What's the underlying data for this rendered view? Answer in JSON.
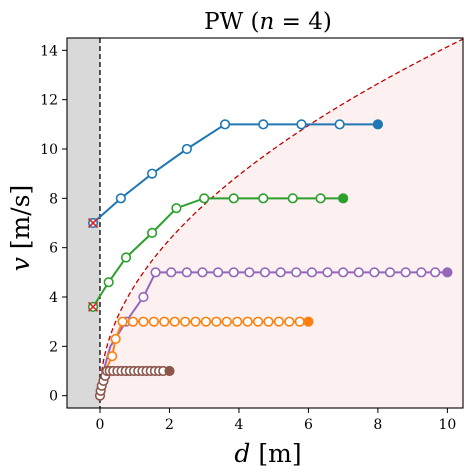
{
  "chart_data": {
    "type": "line",
    "title": "PW (n = 4)",
    "title_parts": {
      "prefix": "PW (",
      "var": "n",
      "suffix": " = 4)"
    },
    "xlabel": {
      "var": "d",
      "unit": " [m]"
    },
    "ylabel": {
      "var": "v",
      "unit": " [m/s]"
    },
    "xlim": [
      -0.95,
      10.45
    ],
    "ylim": [
      -0.5,
      14.5
    ],
    "x_ticks": [
      0,
      2,
      4,
      6,
      8,
      10
    ],
    "y_ticks": [
      0,
      2,
      4,
      6,
      8,
      10,
      12,
      14
    ],
    "grid": false,
    "legend": "none",
    "shaded_region": {
      "x_from": -0.95,
      "x_to": 0,
      "color": "#d9d9d9"
    },
    "feasible_region_color": "#fdf0f0",
    "vertical_line": {
      "x": 0,
      "style": "dashed",
      "color": "#000000"
    },
    "boundary_curve": {
      "style": "dashed",
      "color": "#c00000",
      "equation": "v = sqrt(20 d)"
    },
    "start_markers": [
      {
        "x": -0.2,
        "y": 7.0,
        "color": "#d62728"
      },
      {
        "x": -0.2,
        "y": 3.6,
        "color": "#d62728"
      }
    ],
    "series": [
      {
        "color": "#1f77b4",
        "x": [
          -0.2,
          0.6,
          1.5,
          2.5,
          3.6,
          4.7,
          5.8,
          6.9,
          8.0
        ],
        "y": [
          7.0,
          8.0,
          9.0,
          10.0,
          11.0,
          11.0,
          11.0,
          11.0,
          11.0
        ]
      },
      {
        "color": "#2ca02c",
        "x": [
          -0.2,
          0.25,
          0.75,
          1.5,
          2.2,
          3.0,
          3.85,
          4.7,
          5.55,
          6.35,
          7.0
        ],
        "y": [
          3.6,
          4.6,
          5.6,
          6.6,
          7.6,
          8.0,
          8.0,
          8.0,
          8.0,
          8.0,
          8.0
        ]
      },
      {
        "color": "#9467bd",
        "x": [
          0.0,
          0.1,
          0.3,
          0.75,
          1.25,
          1.6,
          2.05,
          2.5,
          2.95,
          3.4,
          3.85,
          4.3,
          4.75,
          5.2,
          5.65,
          6.1,
          6.55,
          7.0,
          7.45,
          7.9,
          8.35,
          8.8,
          9.25,
          9.65,
          10.0
        ],
        "y": [
          0.0,
          1.0,
          2.0,
          3.0,
          4.0,
          5.0,
          5.0,
          5.0,
          5.0,
          5.0,
          5.0,
          5.0,
          5.0,
          5.0,
          5.0,
          5.0,
          5.0,
          5.0,
          5.0,
          5.0,
          5.0,
          5.0,
          5.0,
          5.0,
          5.0
        ],
        "hidden_points": [
          0,
          1,
          2
        ]
      },
      {
        "color": "#ff7f0e",
        "x": [
          0.0,
          0.05,
          0.15,
          0.35,
          0.45,
          0.65,
          0.95,
          1.25,
          1.55,
          1.85,
          2.15,
          2.45,
          2.75,
          3.05,
          3.35,
          3.65,
          3.95,
          4.25,
          4.55,
          4.85,
          5.15,
          5.45,
          5.75,
          6.0
        ],
        "y": [
          0.0,
          0.5,
          1.0,
          1.6,
          2.3,
          3.0,
          3.0,
          3.0,
          3.0,
          3.0,
          3.0,
          3.0,
          3.0,
          3.0,
          3.0,
          3.0,
          3.0,
          3.0,
          3.0,
          3.0,
          3.0,
          3.0,
          3.0,
          3.0
        ],
        "hidden_points": [
          0,
          1,
          2
        ]
      },
      {
        "color": "#8c564b",
        "x": [
          0.0,
          0.02,
          0.05,
          0.1,
          0.15,
          0.2,
          0.28,
          0.38,
          0.5,
          0.62,
          0.74,
          0.86,
          0.98,
          1.1,
          1.22,
          1.34,
          1.46,
          1.58,
          1.7,
          1.82,
          2.0
        ],
        "y": [
          0.0,
          0.2,
          0.4,
          0.6,
          0.8,
          1.0,
          1.0,
          1.0,
          1.0,
          1.0,
          1.0,
          1.0,
          1.0,
          1.0,
          1.0,
          1.0,
          1.0,
          1.0,
          1.0,
          1.0,
          1.0
        ]
      }
    ]
  }
}
